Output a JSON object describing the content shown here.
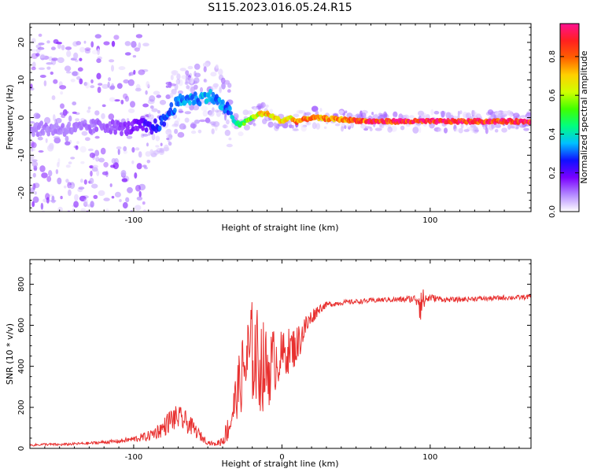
{
  "page_title": "S115.2023.016.05.24.R15",
  "chart_data": [
    {
      "type": "heatmap",
      "xlabel": "Height of straight line (km)",
      "ylabel": "Frequency (Hz)",
      "xlim": [
        -170,
        168
      ],
      "ylim": [
        -25,
        25
      ],
      "x_ticks": [
        -100,
        0,
        100
      ],
      "x_tick_labels": [
        "-100",
        "",
        "100"
      ],
      "y_ticks": [
        -20,
        -10,
        0,
        10,
        20
      ],
      "y_tick_labels": [
        "-20",
        "-10",
        "0",
        "10",
        "20"
      ],
      "colorbar": {
        "label": "Normalized spectral amplitude",
        "range": [
          0,
          0.97
        ],
        "ticks": [
          0.0,
          0.2,
          0.4,
          0.6,
          0.8
        ],
        "tick_labels": [
          "0.0",
          "0.2",
          "0.4",
          "0.6",
          "0.8"
        ],
        "colors": [
          "#ffffff",
          "#b388ff",
          "#7a00ff",
          "#1010ff",
          "#00c0ff",
          "#00ff80",
          "#40ff00",
          "#d0ff00",
          "#ffd000",
          "#ff6000",
          "#ff2020",
          "#ff1090"
        ]
      },
      "ridge": {
        "x": [
          -170,
          -140,
          -120,
          -105,
          -95,
          -88,
          -80,
          -75,
          -70,
          -65,
          -60,
          -55,
          -50,
          -45,
          -40,
          -36,
          -32,
          -28,
          -24,
          -20,
          -15,
          -10,
          -5,
          0,
          5,
          10,
          20,
          40,
          60,
          80,
          100,
          120,
          140,
          168
        ],
        "frequency": [
          -3,
          -3,
          -2,
          -3,
          -2,
          -3,
          -1,
          2,
          4,
          5,
          5,
          5,
          6,
          5,
          3,
          2,
          -1,
          -2,
          -1,
          0,
          1,
          1,
          0,
          -1,
          0,
          -1,
          0,
          -0.5,
          -1,
          -1,
          -1,
          -1,
          -1,
          -1
        ],
        "amplitude": [
          0.1,
          0.1,
          0.12,
          0.15,
          0.2,
          0.25,
          0.3,
          0.33,
          0.35,
          0.35,
          0.35,
          0.35,
          0.36,
          0.35,
          0.34,
          0.3,
          0.4,
          0.5,
          0.55,
          0.6,
          0.7,
          0.75,
          0.7,
          0.72,
          0.7,
          0.8,
          0.78,
          0.8,
          0.9,
          0.92,
          0.95,
          0.95,
          0.95,
          0.9
        ]
      }
    },
    {
      "type": "line",
      "xlabel": "Height of straight line (km)",
      "ylabel": "SNR (10 * v/v)",
      "xlim": [
        -170,
        168
      ],
      "ylim": [
        0,
        920
      ],
      "x_ticks": [
        -100,
        0,
        100
      ],
      "x_tick_labels": [
        "-100",
        "0",
        "100"
      ],
      "y_ticks": [
        0,
        200,
        400,
        600,
        800
      ],
      "y_tick_labels": [
        "0",
        "200",
        "400",
        "600",
        "800"
      ],
      "color": "#e8302f",
      "series": [
        {
          "x": [
            -170,
            -160,
            -150,
            -140,
            -130,
            -120,
            -110,
            -100,
            -90,
            -80,
            -75,
            -70,
            -65,
            -60,
            -55,
            -50,
            -45,
            -40,
            -35,
            -30,
            -25,
            -20,
            -15,
            -10,
            -5,
            0,
            5,
            10,
            15,
            20,
            25,
            30,
            40,
            50,
            60,
            70,
            80,
            90,
            93,
            95,
            100,
            110,
            120,
            130,
            140,
            150,
            160,
            168
          ],
          "y": [
            15,
            20,
            18,
            22,
            25,
            30,
            35,
            45,
            60,
            100,
            140,
            150,
            130,
            100,
            60,
            30,
            20,
            40,
            120,
            280,
            400,
            470,
            420,
            380,
            430,
            450,
            480,
            500,
            580,
            640,
            680,
            700,
            710,
            715,
            720,
            725,
            725,
            730,
            740,
            720,
            735,
            725,
            725,
            730,
            730,
            735,
            735,
            740
          ],
          "noise": [
            5,
            6,
            6,
            6,
            7,
            8,
            10,
            15,
            25,
            45,
            60,
            60,
            55,
            40,
            25,
            12,
            8,
            30,
            80,
            130,
            220,
            260,
            250,
            200,
            160,
            120,
            110,
            100,
            70,
            40,
            25,
            15,
            12,
            12,
            12,
            12,
            15,
            20,
            130,
            60,
            18,
            12,
            12,
            12,
            12,
            12,
            12,
            12
          ]
        }
      ]
    }
  ]
}
